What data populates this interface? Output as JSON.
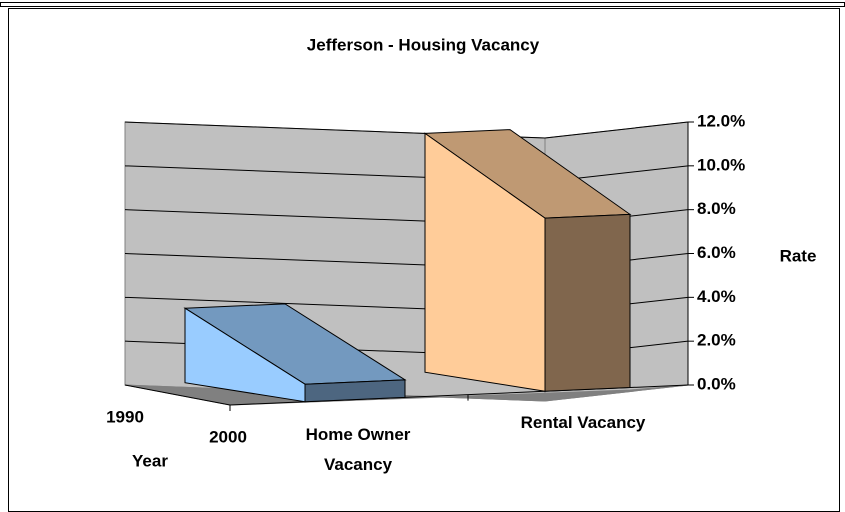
{
  "chart_data": {
    "type": "bar3d",
    "title": "Jefferson - Housing Vacancy",
    "categories": [
      "Home Owner Vacancy",
      "Rental Vacancy"
    ],
    "colors": [
      "#99ccff",
      "#ffcc99"
    ],
    "series": [
      {
        "name": "1990",
        "values": [
          3.4,
          10.9
        ]
      },
      {
        "name": "2000",
        "values": [
          0.8,
          7.9
        ]
      }
    ],
    "series_axis_label": "Year",
    "y_label": "Rate",
    "ylim": [
      0,
      12
    ],
    "yticks": [
      {
        "value": 0,
        "label": "0.0%"
      },
      {
        "value": 2,
        "label": "2.0%"
      },
      {
        "value": 4,
        "label": "4.0%"
      },
      {
        "value": 6,
        "label": "6.0%"
      },
      {
        "value": 8,
        "label": "8.0%"
      },
      {
        "value": 10,
        "label": "10.0%"
      },
      {
        "value": 12,
        "label": "12.0%"
      }
    ],
    "grid": true
  }
}
